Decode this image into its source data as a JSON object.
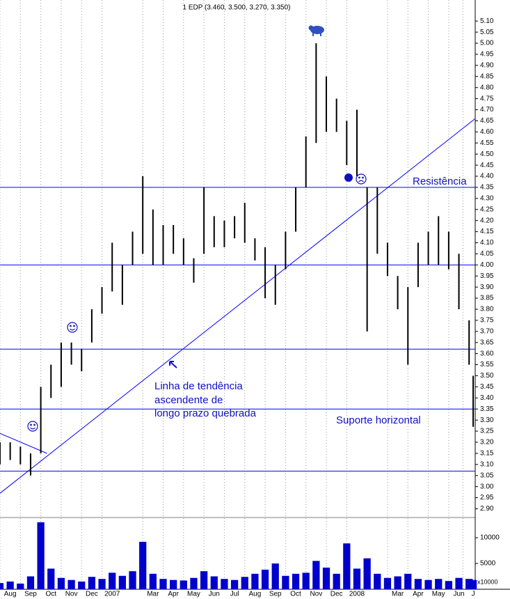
{
  "chart_data": {
    "type": "ohlc",
    "title": "1 EDP (3.460, 3.500, 3.270, 3.350)",
    "x": [
      0,
      0.5,
      1,
      1.5,
      2,
      2.5,
      3,
      3.5,
      4,
      4.5,
      5,
      5.5,
      6,
      6.5,
      7,
      7.5,
      8,
      8.5,
      9,
      9.5,
      10,
      10.5,
      11,
      11.5,
      12,
      12.5,
      13,
      13.5,
      14,
      14.5,
      15,
      15.5,
      16,
      16.5,
      17,
      17.5,
      18,
      18.5,
      19,
      19.5,
      20,
      20.5,
      21,
      21.5,
      22,
      22.5,
      23,
      23.2
    ],
    "series": [
      {
        "color": "#000000",
        "high": [
          3.2,
          3.2,
          3.18,
          3.15,
          3.45,
          3.55,
          3.65,
          3.65,
          3.62,
          3.8,
          3.9,
          4.1,
          4.0,
          4.15,
          4.4,
          4.25,
          4.18,
          4.18,
          4.12,
          4.03,
          4.35,
          4.22,
          4.2,
          4.22,
          4.28,
          4.12,
          4.08,
          4.0,
          4.15,
          4.35,
          4.58,
          5.0,
          4.85,
          4.75,
          4.65,
          4.7,
          4.35,
          4.35,
          4.1,
          3.95,
          3.9,
          4.1,
          4.15,
          4.22,
          4.15,
          4.05,
          3.75,
          3.5
        ],
        "low": [
          3.1,
          3.12,
          3.1,
          3.05,
          3.15,
          3.4,
          3.45,
          3.55,
          3.52,
          3.65,
          3.78,
          3.88,
          3.82,
          4.0,
          4.05,
          4.0,
          4.0,
          4.05,
          4.0,
          3.92,
          4.05,
          4.08,
          4.08,
          4.12,
          4.1,
          4.02,
          3.85,
          3.82,
          3.98,
          4.15,
          4.35,
          4.55,
          4.6,
          4.6,
          4.45,
          4.4,
          3.7,
          4.05,
          3.95,
          3.8,
          3.55,
          3.9,
          4.0,
          4.0,
          3.98,
          3.8,
          3.55,
          3.27
        ]
      }
    ],
    "volume": {
      "color": "#0000cc",
      "values": [
        1200,
        1500,
        1100,
        2500,
        13000,
        4000,
        2200,
        1800,
        1500,
        2400,
        2000,
        3200,
        2600,
        3500,
        9200,
        3000,
        2000,
        1800,
        1700,
        2200,
        3500,
        2500,
        2000,
        1800,
        2400,
        3000,
        3800,
        5000,
        2600,
        3000,
        3200,
        5500,
        4200,
        3000,
        8900,
        4000,
        6000,
        3000,
        2200,
        2500,
        3000,
        2000,
        1800,
        2000,
        1600,
        2200,
        2000,
        1800
      ],
      "ylim": [
        0,
        13650
      ],
      "yticks": [
        5000,
        10000
      ],
      "unit_label": "x10000"
    },
    "xlim": [
      0,
      23.3
    ],
    "xticks": [
      {
        "value": 0.5,
        "label": "Aug"
      },
      {
        "value": 1.5,
        "label": "Sep"
      },
      {
        "value": 2.5,
        "label": "Oct"
      },
      {
        "value": 3.5,
        "label": "Nov"
      },
      {
        "value": 4.5,
        "label": "Dec"
      },
      {
        "value": 5.5,
        "label": "2007"
      },
      {
        "value": 7.5,
        "label": "Mar"
      },
      {
        "value": 8.5,
        "label": "Apr"
      },
      {
        "value": 9.5,
        "label": "May"
      },
      {
        "value": 10.5,
        "label": "Jun"
      },
      {
        "value": 11.5,
        "label": "Jul"
      },
      {
        "value": 12.5,
        "label": "Aug"
      },
      {
        "value": 13.5,
        "label": "Sep"
      },
      {
        "value": 14.5,
        "label": "Oct"
      },
      {
        "value": 15.5,
        "label": "Nov"
      },
      {
        "value": 16.5,
        "label": "Dec"
      },
      {
        "value": 17.5,
        "label": "2008"
      },
      {
        "value": 19.5,
        "label": "Mar"
      },
      {
        "value": 20.5,
        "label": "Apr"
      },
      {
        "value": 21.5,
        "label": "May"
      },
      {
        "value": 22.5,
        "label": "Jun"
      },
      {
        "value": 23.2,
        "label": "J"
      }
    ],
    "ylim": [
      2.87,
      5.195
    ],
    "yticks": [
      {
        "value": 2.9,
        "label": "2.90"
      },
      {
        "value": 2.95,
        "label": "2.95"
      },
      {
        "value": 3.0,
        "label": "3.00"
      },
      {
        "value": 3.05,
        "label": "3.05"
      },
      {
        "value": 3.1,
        "label": "3.10"
      },
      {
        "value": 3.15,
        "label": "3.15"
      },
      {
        "value": 3.2,
        "label": "3.20"
      },
      {
        "value": 3.25,
        "label": "3.25"
      },
      {
        "value": 3.3,
        "label": "3.30"
      },
      {
        "value": 3.35,
        "label": "3.35"
      },
      {
        "value": 3.4,
        "label": "3.40"
      },
      {
        "value": 3.45,
        "label": "3.45"
      },
      {
        "value": 3.5,
        "label": "3.50"
      },
      {
        "value": 3.55,
        "label": "3.55"
      },
      {
        "value": 3.6,
        "label": "3.60"
      },
      {
        "value": 3.65,
        "label": "3.65"
      },
      {
        "value": 3.7,
        "label": "3.70"
      },
      {
        "value": 3.75,
        "label": "3.75"
      },
      {
        "value": 3.8,
        "label": "3.80"
      },
      {
        "value": 3.85,
        "label": "3.85"
      },
      {
        "value": 3.9,
        "label": "3.90"
      },
      {
        "value": 3.95,
        "label": "3.95"
      },
      {
        "value": 4.0,
        "label": "4.00"
      },
      {
        "value": 4.05,
        "label": "4.05"
      },
      {
        "value": 4.1,
        "label": "4.10"
      },
      {
        "value": 4.15,
        "label": "4.15"
      },
      {
        "value": 4.2,
        "label": "4.20"
      },
      {
        "value": 4.25,
        "label": "4.25"
      },
      {
        "value": 4.3,
        "label": "4.30"
      },
      {
        "value": 4.35,
        "label": "4.35"
      },
      {
        "value": 4.4,
        "label": "4.40"
      },
      {
        "value": 4.45,
        "label": "4.45"
      },
      {
        "value": 4.5,
        "label": "4.50"
      },
      {
        "value": 4.55,
        "label": "4.55"
      },
      {
        "value": 4.6,
        "label": "4.60"
      },
      {
        "value": 4.65,
        "label": "4.65"
      },
      {
        "value": 4.7,
        "label": "4.70"
      },
      {
        "value": 4.75,
        "label": "4.75"
      },
      {
        "value": 4.8,
        "label": "4.80"
      },
      {
        "value": 4.85,
        "label": "4.85"
      },
      {
        "value": 4.9,
        "label": "4.90"
      },
      {
        "value": 4.95,
        "label": "4.95"
      },
      {
        "value": 5.0,
        "label": "5.00"
      },
      {
        "value": 5.05,
        "label": "5.05"
      },
      {
        "value": 5.1,
        "label": "5.10"
      }
    ],
    "levels": [
      4.35,
      4.0,
      3.62,
      3.35,
      3.07
    ],
    "line_color": "#0000ff",
    "trendlines": [
      {
        "x": [
          0,
          23.3
        ],
        "y": [
          2.97,
          4.66
        ]
      },
      {
        "x": [
          0,
          2.3
        ],
        "y": [
          3.24,
          3.15
        ]
      }
    ],
    "annotations": {
      "resistance": "Resistência",
      "trend": [
        "Linha de tendência",
        "ascendente de",
        "longo prazo quebrada"
      ],
      "support": "Suporte horizontal"
    }
  }
}
